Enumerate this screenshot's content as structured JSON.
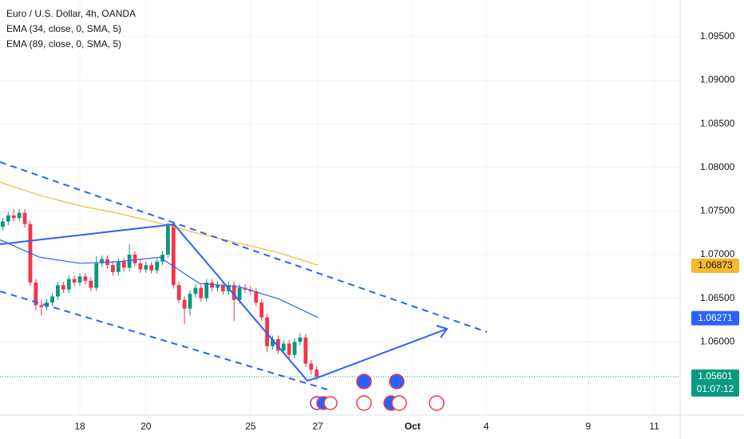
{
  "chart_data": {
    "type": "candlestick",
    "title": "Euro / U.S. Dollar, 4h, OANDA",
    "up_color": "#089981",
    "down_color": "#f23645",
    "open": [
      1.0732,
      1.0738,
      1.0745,
      1.0742,
      1.0748,
      1.0735,
      1.0668,
      1.0642,
      1.064,
      1.0645,
      1.0652,
      1.0665,
      1.066,
      1.0672,
      1.0668,
      1.0675,
      1.067,
      1.0662,
      1.069,
      1.0695,
      1.0688,
      1.068,
      1.0692,
      1.0685,
      1.07,
      1.069,
      1.0683,
      1.0688,
      1.0682,
      1.0692,
      1.07,
      1.0735,
      1.0665,
      1.0648,
      1.0638,
      1.0655,
      1.0662,
      1.065,
      1.0668,
      1.0662,
      1.0665,
      1.0658,
      1.0665,
      1.0648,
      1.0662,
      1.066,
      1.0658,
      1.0645,
      1.0628,
      1.0595,
      1.0603,
      1.059,
      1.0598,
      1.0585,
      1.06,
      1.0605,
      1.0575,
      1.0568
    ],
    "high": [
      1.0742,
      1.0749,
      1.0752,
      1.0752,
      1.0752,
      1.0739,
      1.0672,
      1.0648,
      1.0649,
      1.0656,
      1.0669,
      1.0669,
      1.0676,
      1.0676,
      1.0679,
      1.0679,
      1.0674,
      1.0698,
      1.0699,
      1.0699,
      1.0692,
      1.0696,
      1.0696,
      1.0712,
      1.0704,
      1.0694,
      1.0692,
      1.0692,
      1.0696,
      1.0704,
      1.0737,
      1.0737,
      1.0669,
      1.0652,
      1.0659,
      1.0666,
      1.0666,
      1.0672,
      1.0672,
      1.0669,
      1.0669,
      1.0669,
      1.0669,
      1.0666,
      1.0666,
      1.0664,
      1.0662,
      1.0649,
      1.0632,
      1.0607,
      1.0607,
      1.0602,
      1.0602,
      1.0604,
      1.061,
      1.0609,
      1.0579,
      1.0572
    ],
    "low": [
      1.0728,
      1.0734,
      1.0738,
      1.0738,
      1.0731,
      1.0664,
      1.0636,
      1.063,
      1.0636,
      1.0641,
      1.0648,
      1.0656,
      1.0656,
      1.0664,
      1.0664,
      1.0666,
      1.0658,
      1.0658,
      1.0686,
      1.0684,
      1.0676,
      1.0676,
      1.0681,
      1.0681,
      1.0686,
      1.0679,
      1.0679,
      1.0678,
      1.0678,
      1.0688,
      1.0696,
      1.0661,
      1.0644,
      1.062,
      1.063,
      1.0651,
      1.0646,
      1.0646,
      1.0658,
      1.0658,
      1.0654,
      1.0654,
      1.0624,
      1.0644,
      1.0656,
      1.0654,
      1.0641,
      1.0624,
      1.0588,
      1.0591,
      1.0586,
      1.0586,
      1.0581,
      1.0581,
      1.0596,
      1.0571,
      1.0562,
      1.0556
    ],
    "close": [
      1.0738,
      1.0745,
      1.0742,
      1.0748,
      1.0735,
      1.0668,
      1.0642,
      1.064,
      1.0645,
      1.0652,
      1.0665,
      1.066,
      1.0672,
      1.0668,
      1.0675,
      1.067,
      1.0662,
      1.069,
      1.0695,
      1.0688,
      1.068,
      1.0692,
      1.0685,
      1.07,
      1.069,
      1.0683,
      1.0688,
      1.0682,
      1.0692,
      1.07,
      1.0735,
      1.0665,
      1.0648,
      1.0638,
      1.0655,
      1.0662,
      1.065,
      1.0668,
      1.0662,
      1.0665,
      1.0658,
      1.0665,
      1.0648,
      1.0662,
      1.066,
      1.0658,
      1.0645,
      1.0628,
      1.0595,
      1.0603,
      1.059,
      1.0598,
      1.0585,
      1.06,
      1.0605,
      1.0575,
      1.0568,
      1.05601
    ],
    "lines": [
      {
        "name": "EMA (34, close, 0, SMA, 5)",
        "color": "#2962ff",
        "x": [
          0,
          7.2,
          14.5,
          21.7,
          29,
          36.2,
          43.5,
          50.7,
          57.7
        ],
        "values": [
          1.0717,
          1.0697,
          1.069,
          1.0692,
          1.0697,
          1.0667,
          1.0663,
          1.0649,
          1.0628
        ]
      },
      {
        "name": "EMA (89, close, 0, SMA, 5)",
        "color": "#f5b82e",
        "x": [
          0,
          7.2,
          14.5,
          21.7,
          29,
          36.2,
          43.5,
          50.7,
          57.7
        ],
        "values": [
          1.0783,
          1.0768,
          1.0756,
          1.0747,
          1.0736,
          1.0724,
          1.0713,
          1.0702,
          1.0688
        ]
      }
    ],
    "xlim": [
      0,
      123.5
    ],
    "ylim": [
      1.0516,
      1.0992
    ],
    "xticks": [
      {
        "value": 14.5,
        "label": "18"
      },
      {
        "value": 26.5,
        "label": "20"
      },
      {
        "value": 45.5,
        "label": "25"
      },
      {
        "value": 57.7,
        "label": "27"
      },
      {
        "value": 74.9,
        "label": "Oct"
      },
      {
        "value": 88.3,
        "label": "4"
      },
      {
        "value": 106.8,
        "label": "9"
      },
      {
        "value": 118.8,
        "label": "11"
      }
    ],
    "yticks": [
      {
        "value": 1.06,
        "label": "1.06000"
      },
      {
        "value": 1.065,
        "label": "1.06500"
      },
      {
        "value": 1.07,
        "label": "1.07000"
      },
      {
        "value": 1.075,
        "label": "1.07500"
      },
      {
        "value": 1.08,
        "label": "1.08000"
      },
      {
        "value": 1.085,
        "label": "1.08500"
      },
      {
        "value": 1.09,
        "label": "1.09000"
      },
      {
        "value": 1.095,
        "label": "1.09500"
      }
    ],
    "grid": true,
    "price_tags": [
      {
        "value": 1.06873,
        "color": "#f5b82e"
      },
      {
        "value": 1.06271,
        "color": "#2962ff"
      },
      {
        "value": 1.05601,
        "color": "#089981",
        "timer": "01:07:12"
      }
    ]
  }
}
